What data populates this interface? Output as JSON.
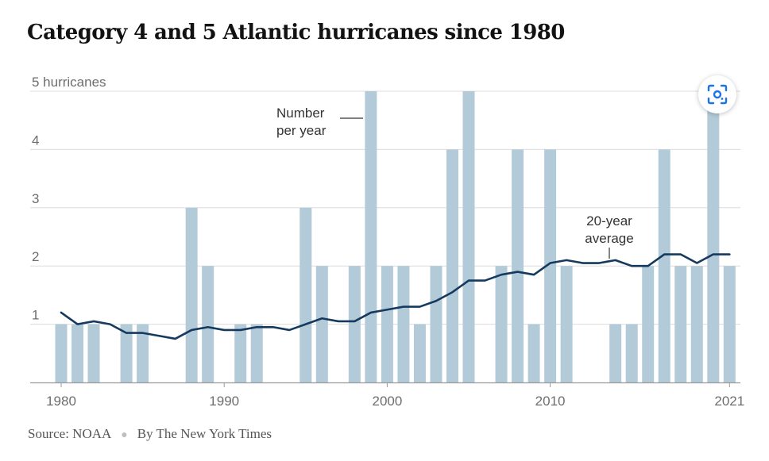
{
  "chart_data": {
    "type": "bar",
    "title": "Category 4 and 5 Atlantic hurricanes since 1980",
    "ylabel": "",
    "y_unit_label": "5 hurricanes",
    "ylim": [
      0,
      5
    ],
    "yticks": [
      "1",
      "2",
      "3",
      "4"
    ],
    "xticks": [
      "1980",
      "1990",
      "2000",
      "2010",
      "2021"
    ],
    "x": [
      1980,
      1981,
      1982,
      1983,
      1984,
      1985,
      1986,
      1987,
      1988,
      1989,
      1990,
      1991,
      1992,
      1993,
      1994,
      1995,
      1996,
      1997,
      1998,
      1999,
      2000,
      2001,
      2002,
      2003,
      2004,
      2005,
      2006,
      2007,
      2008,
      2009,
      2010,
      2011,
      2012,
      2013,
      2014,
      2015,
      2016,
      2017,
      2018,
      2019,
      2020,
      2021
    ],
    "series": [
      {
        "kind": "bar",
        "color": "#b3cbd8",
        "values": [
          1,
          1,
          1,
          0,
          1,
          1,
          0,
          0,
          3,
          2,
          0,
          1,
          1,
          0,
          0,
          3,
          2,
          0,
          2,
          5,
          2,
          2,
          1,
          2,
          4,
          5,
          0,
          2,
          4,
          1,
          4,
          2,
          0,
          0,
          1,
          1,
          2,
          4,
          2,
          2,
          5,
          2
        ]
      },
      {
        "kind": "line",
        "color": "#163a5f",
        "values": [
          1.2,
          1.0,
          1.05,
          1.0,
          0.85,
          0.85,
          0.8,
          0.75,
          0.9,
          0.95,
          0.9,
          0.9,
          0.95,
          0.95,
          0.9,
          1.0,
          1.1,
          1.05,
          1.05,
          1.2,
          1.25,
          1.3,
          1.3,
          1.4,
          1.55,
          1.75,
          1.75,
          1.85,
          1.9,
          1.85,
          2.05,
          2.1,
          2.05,
          2.05,
          2.1,
          2.0,
          2.0,
          2.2,
          2.2,
          2.05,
          2.2,
          2.2
        ]
      }
    ],
    "annotations": {
      "bars_line1": "Number",
      "bars_line2": "per year",
      "avg_line1": "20-year",
      "avg_line2": "average"
    },
    "grid": true
  },
  "footer": {
    "source": "Source: NOAA",
    "byline": "By The New York Times"
  },
  "corner_button": {
    "icon": "scan-icon",
    "color": "#1a73e8"
  }
}
